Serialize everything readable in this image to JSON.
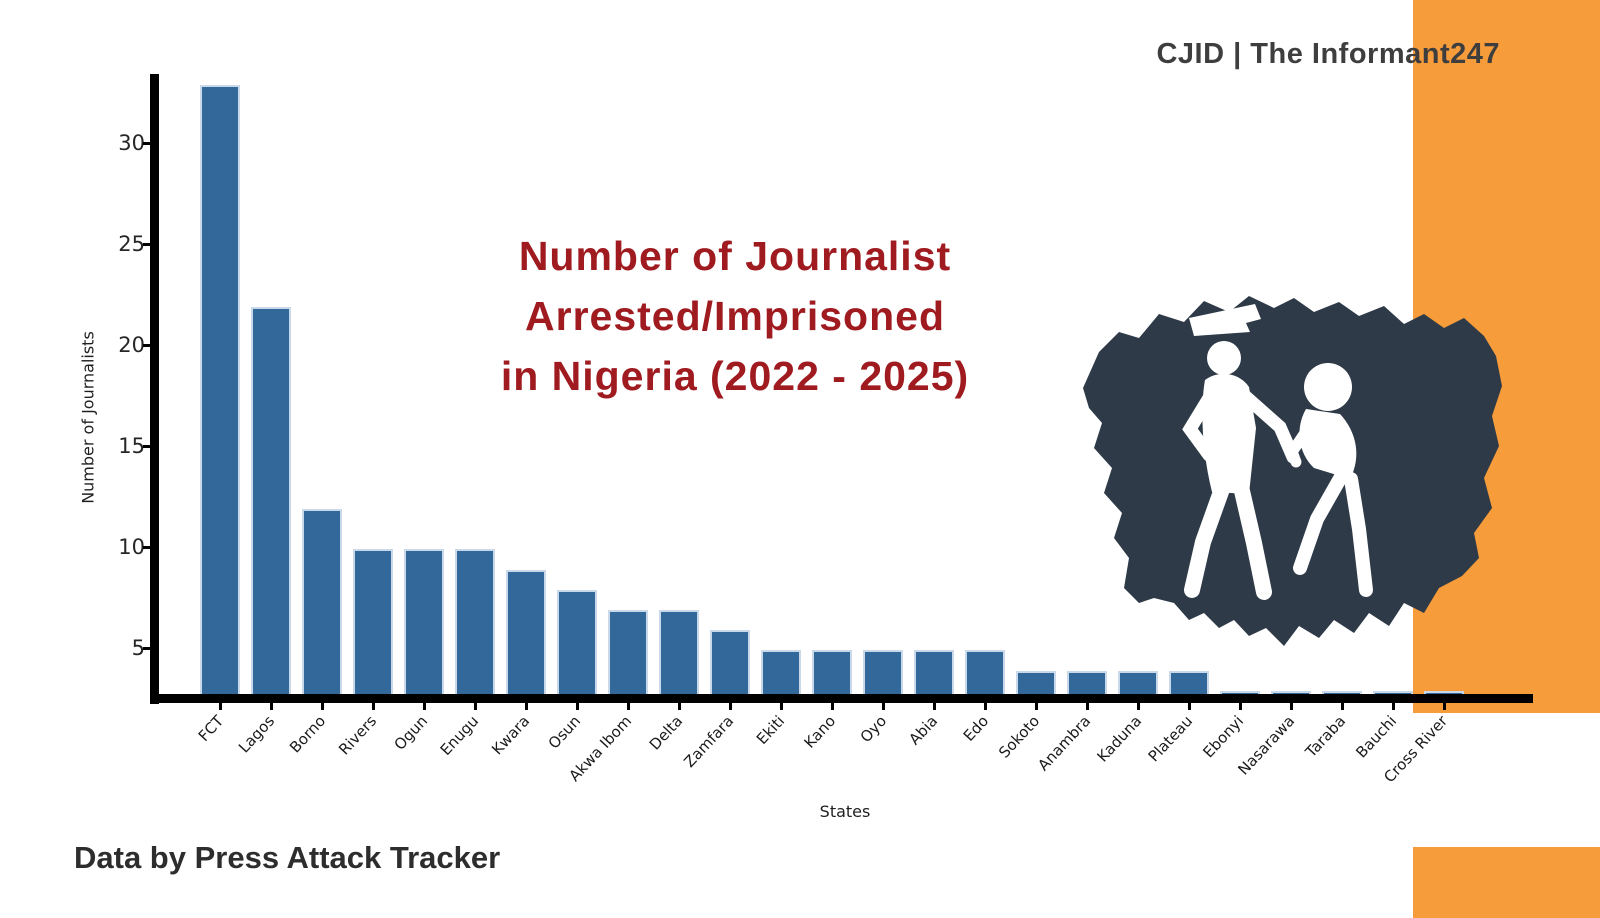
{
  "brand": {
    "text": "CJID | The Informant247"
  },
  "title": {
    "line1": "Number of Journalist",
    "line2": "Arrested/Imprisoned",
    "line3": "in Nigeria (2022 - 2025)"
  },
  "source": {
    "text": "Data by Press Attack Tracker"
  },
  "graphic": {
    "name": "nigeria-map-police-arrest-illustration"
  },
  "colors": {
    "title_red": "#9F1B20",
    "accent_orange": "#F79C3B",
    "bar_blue": "#33689B",
    "bar_edge": "#C9D9EA",
    "map_navy": "#2E3A47",
    "figure_white": "#FFFFFF",
    "brand_gray": "#3E3E3E"
  },
  "chart_data": {
    "type": "bar",
    "title": "Number of Journalist Arrested/Imprisoned in Nigeria (2022 - 2025)",
    "xlabel": "States",
    "ylabel": "Number of Journalists",
    "categories": [
      "FCT",
      "Lagos",
      "Borno",
      "Rivers",
      "Ogun",
      "Enugu",
      "Kwara",
      "Osun",
      "Akwa Ibom",
      "Delta",
      "Zamfara",
      "Ekiti",
      "Kano",
      "Oyo",
      "Abia",
      "Edo",
      "Sokoto",
      "Anambra",
      "Kaduna",
      "Plateau",
      "Ebonyi",
      "Nasarawa",
      "Taraba",
      "Bauchi",
      "Cross River"
    ],
    "values": [
      33,
      22,
      12,
      10,
      10,
      10,
      9,
      8,
      7,
      7,
      6,
      5,
      5,
      5,
      5,
      5,
      4,
      4,
      4,
      4,
      3,
      3,
      3,
      3,
      3
    ],
    "yticks": [
      5,
      10,
      15,
      20,
      25,
      30
    ],
    "ylim": [
      2.4,
      34
    ],
    "grid": false,
    "legend": false,
    "bar_color": "#33689B"
  }
}
